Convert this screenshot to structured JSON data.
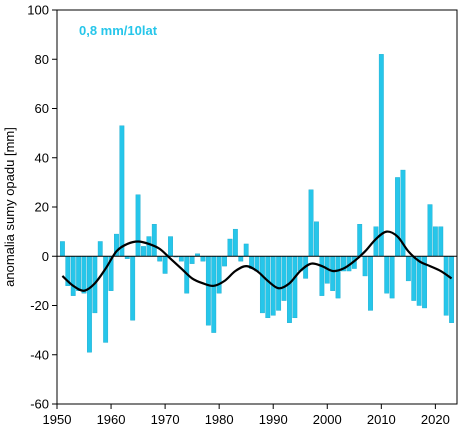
{
  "chart_data": {
    "type": "bar",
    "title": "",
    "annotation": "0,8 mm/10lat",
    "xlabel": "",
    "ylabel": "anomalia sumy opadu [mm]",
    "xlim": [
      1950,
      2024
    ],
    "ylim": [
      -60,
      100
    ],
    "xticks": [
      "1950",
      "1960",
      "1970",
      "1980",
      "1990",
      "2000",
      "2010",
      "2020"
    ],
    "yticks": [
      "-60",
      "-40",
      "-20",
      "0",
      "20",
      "40",
      "60",
      "80",
      "100"
    ],
    "grid": false,
    "legend": "none",
    "colors": {
      "bars": "#26c6ea",
      "bar_edge": "#1aa9cc",
      "smooth": "#000000",
      "annotation": "#26c6ea"
    },
    "years": [
      1951,
      1952,
      1953,
      1954,
      1955,
      1956,
      1957,
      1958,
      1959,
      1960,
      1961,
      1962,
      1963,
      1964,
      1965,
      1966,
      1967,
      1968,
      1969,
      1970,
      1971,
      1972,
      1973,
      1974,
      1975,
      1976,
      1977,
      1978,
      1979,
      1980,
      1981,
      1982,
      1983,
      1984,
      1985,
      1986,
      1987,
      1988,
      1989,
      1990,
      1991,
      1992,
      1993,
      1994,
      1995,
      1996,
      1997,
      1998,
      1999,
      2000,
      2001,
      2002,
      2003,
      2004,
      2005,
      2006,
      2007,
      2008,
      2009,
      2010,
      2011,
      2012,
      2013,
      2014,
      2015,
      2016,
      2017,
      2018,
      2019,
      2020,
      2021,
      2022,
      2023
    ],
    "values": [
      6,
      -12,
      -16,
      -14,
      -15,
      -39,
      -23,
      6,
      -35,
      -14,
      9,
      53,
      -1,
      -26,
      25,
      4,
      8,
      13,
      -2,
      -7,
      8,
      0,
      -2,
      -15,
      -3,
      1,
      -2,
      -28,
      -31,
      -15,
      -4,
      7,
      11,
      -2,
      5,
      -5,
      -6,
      -23,
      -25,
      -24,
      -22,
      -18,
      -27,
      -25,
      -6,
      -9,
      27,
      14,
      -16,
      -11,
      -14,
      -17,
      -6,
      -6,
      -5,
      13,
      -8,
      -22,
      12,
      82,
      -15,
      -17,
      32,
      35,
      -10,
      -18,
      -20,
      -21,
      21,
      12,
      12,
      -24,
      -27
    ],
    "smooth_series": {
      "name": "",
      "x": [
        1951,
        1953,
        1955,
        1957,
        1959,
        1961,
        1963,
        1965,
        1967,
        1969,
        1971,
        1973,
        1975,
        1977,
        1979,
        1981,
        1983,
        1985,
        1987,
        1989,
        1991,
        1993,
        1995,
        1997,
        1999,
        2001,
        2003,
        2005,
        2007,
        2009,
        2011,
        2013,
        2015,
        2017,
        2019,
        2021,
        2023
      ],
      "y": [
        -8,
        -12,
        -14,
        -11,
        -5,
        2,
        5,
        6,
        5,
        3,
        -1,
        -5,
        -9,
        -11,
        -12,
        -10,
        -6,
        -4,
        -6,
        -10,
        -13,
        -11,
        -6,
        -3,
        -4,
        -6,
        -5,
        -2,
        2,
        7,
        10,
        8,
        2,
        -2,
        -4,
        -6,
        -9
      ]
    }
  }
}
